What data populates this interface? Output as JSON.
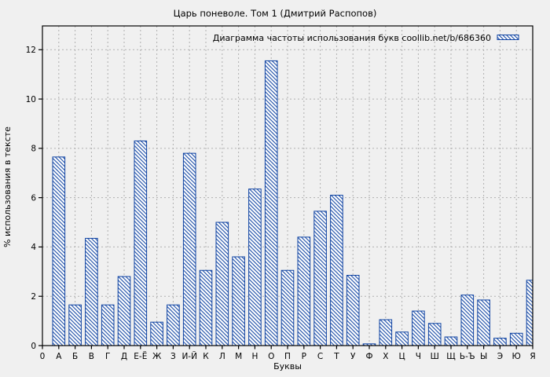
{
  "figure": {
    "background": "#f0f0f0"
  },
  "chart_data": {
    "type": "bar",
    "title": "Царь поневоле. Том 1 (Дмитрий Распопов)",
    "legend": "Диаграмма частоты использования букв coollib.net/b/686360",
    "legend_position": "top-right-inside",
    "xlabel": "Буквы",
    "ylabel": "% использования в тексте",
    "origin_label": "0",
    "categories": [
      "А",
      "Б",
      "В",
      "Г",
      "Д",
      "Е-Ё",
      "Ж",
      "З",
      "И-Й",
      "К",
      "Л",
      "М",
      "Н",
      "О",
      "П",
      "Р",
      "С",
      "Т",
      "У",
      "Ф",
      "Х",
      "Ц",
      "Ч",
      "Ш",
      "Щ",
      "Ь-Ъ",
      "Ы",
      "Э",
      "Ю",
      "Я"
    ],
    "values": [
      7.65,
      1.65,
      4.35,
      1.65,
      2.8,
      8.3,
      0.95,
      1.65,
      7.8,
      3.05,
      5.0,
      3.6,
      6.35,
      11.55,
      3.05,
      4.4,
      5.45,
      6.1,
      2.85,
      0.07,
      1.05,
      0.55,
      1.4,
      0.9,
      0.35,
      2.05,
      1.85,
      0.3,
      0.5,
      2.65
    ],
    "yticks": [
      0,
      2,
      4,
      6,
      8,
      10,
      12
    ],
    "ylim": [
      0,
      13
    ],
    "grid": true,
    "grid_style": "dashed",
    "hatch": "diagonal-backslash",
    "colors": {
      "bar_stroke": "#0f43a2",
      "bar_fill": "#ffffff",
      "grid": "#b0b0b0",
      "axis": "#000000",
      "text": "#000000"
    }
  }
}
